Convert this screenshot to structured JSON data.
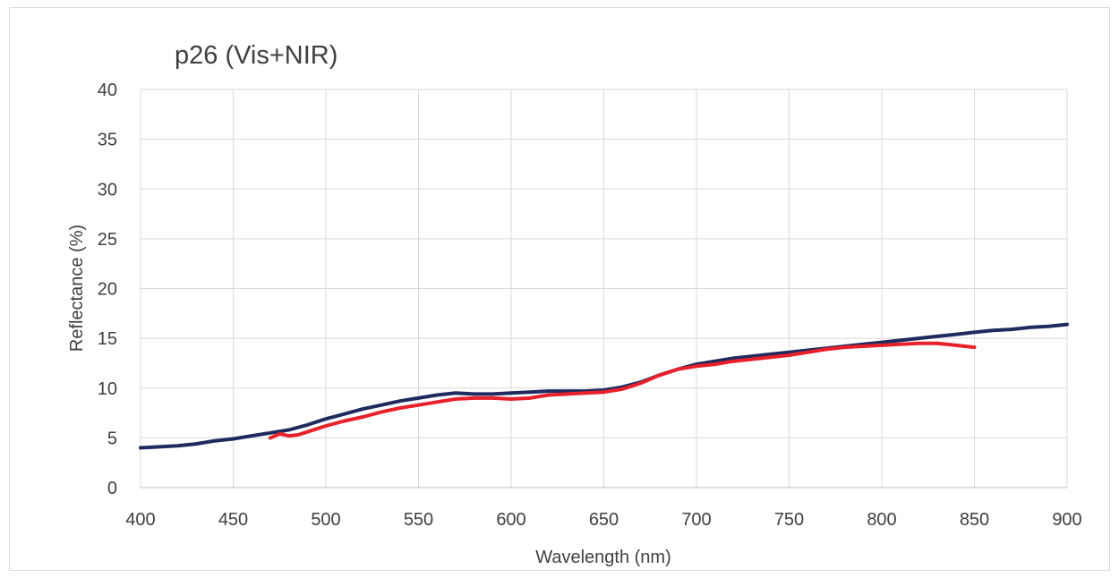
{
  "chart_data": {
    "type": "line",
    "title": "p26 (Vis+NIR)",
    "xlabel": "Wavelength (nm)",
    "ylabel": "Reflectance (%)",
    "xlim": [
      400,
      900
    ],
    "ylim": [
      0,
      40
    ],
    "xticks": [
      400,
      450,
      500,
      550,
      600,
      650,
      700,
      750,
      800,
      850,
      900
    ],
    "yticks": [
      0,
      5,
      10,
      15,
      20,
      25,
      30,
      35,
      40
    ],
    "grid": true,
    "legend": "none",
    "series": [
      {
        "color": "#1f2a5e",
        "points": [
          [
            400,
            4.0
          ],
          [
            410,
            4.1
          ],
          [
            420,
            4.2
          ],
          [
            430,
            4.4
          ],
          [
            440,
            4.7
          ],
          [
            450,
            4.9
          ],
          [
            460,
            5.2
          ],
          [
            470,
            5.5
          ],
          [
            480,
            5.8
          ],
          [
            490,
            6.3
          ],
          [
            500,
            6.9
          ],
          [
            510,
            7.4
          ],
          [
            520,
            7.9
          ],
          [
            530,
            8.3
          ],
          [
            540,
            8.7
          ],
          [
            550,
            9.0
          ],
          [
            560,
            9.3
          ],
          [
            570,
            9.5
          ],
          [
            580,
            9.4
          ],
          [
            590,
            9.4
          ],
          [
            600,
            9.5
          ],
          [
            610,
            9.6
          ],
          [
            620,
            9.7
          ],
          [
            630,
            9.7
          ],
          [
            640,
            9.7
          ],
          [
            650,
            9.8
          ],
          [
            660,
            10.1
          ],
          [
            670,
            10.6
          ],
          [
            680,
            11.3
          ],
          [
            690,
            11.9
          ],
          [
            700,
            12.4
          ],
          [
            710,
            12.7
          ],
          [
            720,
            13.0
          ],
          [
            730,
            13.2
          ],
          [
            740,
            13.4
          ],
          [
            750,
            13.6
          ],
          [
            760,
            13.8
          ],
          [
            770,
            14.0
          ],
          [
            780,
            14.2
          ],
          [
            790,
            14.4
          ],
          [
            800,
            14.6
          ],
          [
            810,
            14.8
          ],
          [
            820,
            15.0
          ],
          [
            830,
            15.2
          ],
          [
            840,
            15.4
          ],
          [
            850,
            15.6
          ],
          [
            860,
            15.8
          ],
          [
            870,
            15.9
          ],
          [
            880,
            16.1
          ],
          [
            890,
            16.2
          ],
          [
            900,
            16.4
          ]
        ]
      },
      {
        "color": "#e8202a",
        "points": [
          [
            470,
            5.0
          ],
          [
            475,
            5.4
          ],
          [
            480,
            5.2
          ],
          [
            485,
            5.3
          ],
          [
            490,
            5.6
          ],
          [
            500,
            6.2
          ],
          [
            510,
            6.7
          ],
          [
            520,
            7.1
          ],
          [
            530,
            7.6
          ],
          [
            540,
            8.0
          ],
          [
            550,
            8.3
          ],
          [
            560,
            8.6
          ],
          [
            570,
            8.9
          ],
          [
            580,
            9.0
          ],
          [
            590,
            9.0
          ],
          [
            600,
            8.9
          ],
          [
            610,
            9.0
          ],
          [
            620,
            9.3
          ],
          [
            630,
            9.4
          ],
          [
            640,
            9.5
          ],
          [
            650,
            9.6
          ],
          [
            660,
            9.9
          ],
          [
            670,
            10.5
          ],
          [
            680,
            11.3
          ],
          [
            690,
            11.9
          ],
          [
            700,
            12.2
          ],
          [
            710,
            12.4
          ],
          [
            720,
            12.7
          ],
          [
            730,
            12.9
          ],
          [
            740,
            13.1
          ],
          [
            750,
            13.3
          ],
          [
            760,
            13.6
          ],
          [
            770,
            13.9
          ],
          [
            780,
            14.1
          ],
          [
            790,
            14.2
          ],
          [
            800,
            14.3
          ],
          [
            810,
            14.4
          ],
          [
            820,
            14.5
          ],
          [
            830,
            14.5
          ],
          [
            840,
            14.3
          ],
          [
            850,
            14.1
          ]
        ]
      }
    ]
  }
}
